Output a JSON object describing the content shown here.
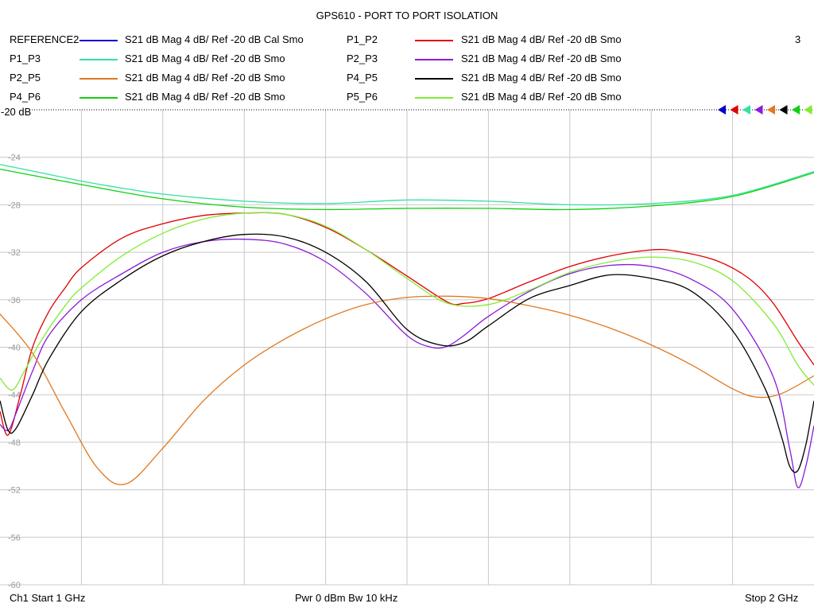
{
  "chart_data": {
    "type": "line",
    "title": "GPS610 - PORT TO PORT ISOLATION",
    "channel_number": "3",
    "x_unit": "GHz",
    "xlim": [
      1,
      2
    ],
    "ylim": [
      -60,
      -20
    ],
    "y_ref_label": "-20 dB",
    "y_ticks": [
      -24,
      -28,
      -32,
      -36,
      -40,
      -44,
      -48,
      -52,
      -56,
      -60
    ],
    "grid": true,
    "legend_position": "top",
    "series": [
      {
        "name": "REFERENCE2",
        "desc": "S21  dB Mag  4 dB/ Ref -20 dB  Cal Smo",
        "color": "#0000cc",
        "x": [],
        "y": []
      },
      {
        "name": "P1_P2",
        "desc": "S21  dB Mag  4 dB/ Ref -20 dB  Smo",
        "color": "#e00000",
        "x": [
          1.0,
          1.01,
          1.025,
          1.04,
          1.06,
          1.08,
          1.1,
          1.15,
          1.2,
          1.25,
          1.3,
          1.35,
          1.4,
          1.45,
          1.5,
          1.55,
          1.57,
          1.6,
          1.65,
          1.7,
          1.75,
          1.8,
          1.83,
          1.88,
          1.92,
          1.95,
          1.98,
          2.0
        ],
        "y": [
          -45.4,
          -47.4,
          -44.0,
          -40.0,
          -37.0,
          -35.0,
          -33.3,
          -30.8,
          -29.6,
          -28.9,
          -28.7,
          -28.8,
          -29.9,
          -31.8,
          -34.0,
          -36.2,
          -36.3,
          -35.9,
          -34.5,
          -33.2,
          -32.3,
          -31.8,
          -31.9,
          -32.7,
          -34.2,
          -36.3,
          -39.5,
          -41.5
        ]
      },
      {
        "name": "P1_P3",
        "desc": "S21  dB Mag  4 dB/ Ref -20 dB  Smo",
        "color": "#33e0a0",
        "x": [
          1.0,
          1.05,
          1.1,
          1.15,
          1.2,
          1.3,
          1.4,
          1.5,
          1.6,
          1.7,
          1.8,
          1.9,
          2.0
        ],
        "y": [
          -24.6,
          -25.3,
          -26.0,
          -26.6,
          -27.1,
          -27.7,
          -27.9,
          -27.6,
          -27.7,
          -28.0,
          -27.9,
          -27.2,
          -25.2
        ]
      },
      {
        "name": "P2_P3",
        "desc": "S21  dB Mag  4 dB/ Ref -20 dB  Smo",
        "color": "#8a1ad8",
        "x": [
          1.0,
          1.01,
          1.02,
          1.04,
          1.06,
          1.1,
          1.15,
          1.2,
          1.25,
          1.3,
          1.35,
          1.4,
          1.45,
          1.5,
          1.53,
          1.55,
          1.57,
          1.6,
          1.65,
          1.7,
          1.75,
          1.8,
          1.85,
          1.9,
          1.95,
          1.97,
          1.98,
          1.99,
          2.0
        ],
        "y": [
          -46.5,
          -47.0,
          -45.5,
          -42.0,
          -39.0,
          -36.0,
          -33.8,
          -32.0,
          -31.1,
          -30.9,
          -31.3,
          -32.8,
          -35.5,
          -39.0,
          -40.0,
          -39.9,
          -39.0,
          -37.4,
          -35.3,
          -33.8,
          -33.1,
          -33.2,
          -34.3,
          -36.8,
          -42.5,
          -48.5,
          -51.8,
          -50.0,
          -46.6
        ]
      },
      {
        "name": "P2_P5",
        "desc": "S21  dB Mag  4 dB/ Ref -20 dB  Smo",
        "color": "#e07820",
        "x": [
          1.0,
          1.04,
          1.08,
          1.12,
          1.155,
          1.2,
          1.25,
          1.3,
          1.35,
          1.4,
          1.45,
          1.5,
          1.55,
          1.6,
          1.65,
          1.7,
          1.75,
          1.8,
          1.85,
          1.9,
          1.93,
          1.96,
          2.0
        ],
        "y": [
          -37.2,
          -40.5,
          -45.5,
          -50.2,
          -51.5,
          -48.5,
          -44.5,
          -41.5,
          -39.3,
          -37.6,
          -36.4,
          -35.8,
          -35.7,
          -35.9,
          -36.5,
          -37.3,
          -38.4,
          -39.8,
          -41.5,
          -43.5,
          -44.2,
          -43.9,
          -42.4
        ]
      },
      {
        "name": "P4_P5",
        "desc": "S21  dB Mag  4 dB/ Ref -20 dB  Smo",
        "color": "#000000",
        "x": [
          1.0,
          1.01,
          1.02,
          1.04,
          1.06,
          1.1,
          1.15,
          1.2,
          1.25,
          1.3,
          1.35,
          1.4,
          1.45,
          1.5,
          1.54,
          1.57,
          1.6,
          1.65,
          1.7,
          1.75,
          1.8,
          1.85,
          1.9,
          1.94,
          1.96,
          1.97,
          1.98,
          1.99,
          2.0
        ],
        "y": [
          -44.5,
          -47.0,
          -46.8,
          -44.0,
          -41.0,
          -37.0,
          -34.3,
          -32.3,
          -31.1,
          -30.5,
          -30.7,
          -32.0,
          -34.5,
          -38.5,
          -39.8,
          -39.6,
          -38.2,
          -35.9,
          -34.8,
          -33.9,
          -34.2,
          -35.3,
          -38.6,
          -43.5,
          -47.5,
          -50.0,
          -50.4,
          -48.2,
          -44.5
        ]
      },
      {
        "name": "P4_P6",
        "desc": "S21  dB Mag  4 dB/ Ref -20 dB  Smo",
        "color": "#10d010",
        "x": [
          1.0,
          1.1,
          1.2,
          1.3,
          1.4,
          1.5,
          1.6,
          1.7,
          1.8,
          1.9,
          2.0
        ],
        "y": [
          -25.0,
          -26.3,
          -27.5,
          -28.2,
          -28.4,
          -28.3,
          -28.3,
          -28.4,
          -28.1,
          -27.3,
          -25.3
        ]
      },
      {
        "name": "P5_P6",
        "desc": "S21  dB Mag  4 dB/ Ref -20 dB  Smo",
        "color": "#80ec30",
        "x": [
          1.0,
          1.015,
          1.03,
          1.05,
          1.08,
          1.1,
          1.15,
          1.2,
          1.25,
          1.3,
          1.35,
          1.4,
          1.45,
          1.5,
          1.55,
          1.6,
          1.65,
          1.7,
          1.75,
          1.8,
          1.85,
          1.9,
          1.95,
          1.98,
          2.0
        ],
        "y": [
          -42.6,
          -43.6,
          -42.0,
          -39.5,
          -36.5,
          -35.0,
          -32.3,
          -30.4,
          -29.2,
          -28.7,
          -28.8,
          -29.8,
          -31.8,
          -34.2,
          -36.3,
          -36.4,
          -35.2,
          -33.7,
          -32.8,
          -32.4,
          -32.8,
          -34.4,
          -38.0,
          -41.5,
          -43.2
        ]
      }
    ]
  },
  "footer": {
    "left": "Ch1  Start  1 GHz",
    "center": "Pwr  0 dBm  Bw  10 kHz",
    "right": "Stop  2 GHz"
  }
}
